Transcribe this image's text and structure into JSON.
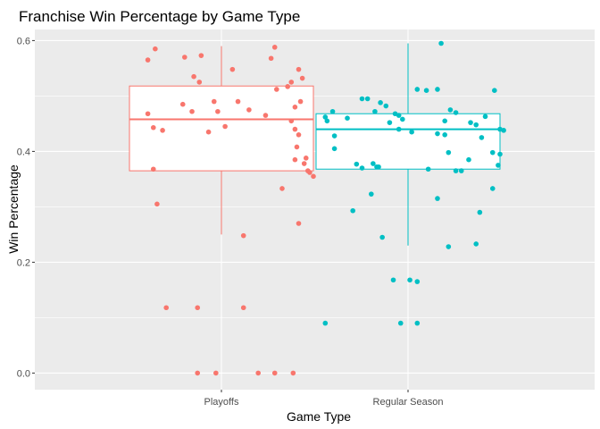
{
  "chart_data": {
    "type": "boxplot",
    "title": "Franchise Win Percentage by Game Type",
    "xlabel": "Game Type",
    "ylabel": "Win Percentage",
    "ylim": [
      -0.03,
      0.62
    ],
    "yticks": [
      "0.0",
      "0.2",
      "0.4",
      "0.6"
    ],
    "ytick_values": [
      0.0,
      0.2,
      0.4,
      0.6
    ],
    "grid": true,
    "legend": "none",
    "background": "#ebebeb",
    "categories": [
      "Playoffs",
      "Regular Season"
    ],
    "series": [
      {
        "category": "Playoffs",
        "color": "#f8766d",
        "box": {
          "whisker_low": 0.25,
          "q1": 0.365,
          "median": 0.458,
          "q3": 0.518,
          "whisker_high": 0.59
        },
        "points": [
          [
            -0.4,
            0.565
          ],
          [
            -0.36,
            0.585
          ],
          [
            -0.4,
            0.468
          ],
          [
            -0.37,
            0.443
          ],
          [
            -0.32,
            0.438
          ],
          [
            -0.37,
            0.368
          ],
          [
            -0.35,
            0.305
          ],
          [
            -0.3,
            0.118
          ],
          [
            -0.13,
            0.118
          ],
          [
            -0.2,
            0.57
          ],
          [
            -0.11,
            0.573
          ],
          [
            -0.15,
            0.535
          ],
          [
            -0.21,
            0.485
          ],
          [
            -0.16,
            0.472
          ],
          [
            -0.12,
            0.525
          ],
          [
            -0.04,
            0.49
          ],
          [
            -0.02,
            0.472
          ],
          [
            -0.07,
            0.435
          ],
          [
            0.02,
            0.445
          ],
          [
            0.06,
            0.548
          ],
          [
            0.09,
            0.49
          ],
          [
            0.15,
            0.475
          ],
          [
            0.24,
            0.465
          ],
          [
            0.29,
            0.588
          ],
          [
            0.27,
            0.568
          ],
          [
            0.3,
            0.512
          ],
          [
            0.36,
            0.517
          ],
          [
            0.38,
            0.525
          ],
          [
            0.42,
            0.548
          ],
          [
            0.4,
            0.48
          ],
          [
            0.38,
            0.455
          ],
          [
            0.42,
            0.43
          ],
          [
            0.4,
            0.44
          ],
          [
            0.41,
            0.408
          ],
          [
            0.4,
            0.385
          ],
          [
            0.44,
            0.532
          ],
          [
            0.43,
            0.49
          ],
          [
            0.46,
            0.388
          ],
          [
            0.45,
            0.378
          ],
          [
            0.47,
            0.365
          ],
          [
            0.48,
            0.362
          ],
          [
            0.5,
            0.355
          ],
          [
            0.33,
            0.333
          ],
          [
            0.42,
            0.27
          ],
          [
            0.12,
            0.248
          ],
          [
            0.12,
            0.118
          ],
          [
            -0.13,
            0.0
          ],
          [
            -0.03,
            0.0
          ],
          [
            0.2,
            0.0
          ],
          [
            0.29,
            0.0
          ],
          [
            0.39,
            0.0
          ]
        ]
      },
      {
        "category": "Regular Season",
        "color": "#00bfc4",
        "box": {
          "whisker_low": 0.23,
          "q1": 0.368,
          "median": 0.44,
          "q3": 0.468,
          "whisker_high": 0.595
        },
        "points": [
          [
            -0.45,
            0.462
          ],
          [
            -0.41,
            0.472
          ],
          [
            -0.44,
            0.455
          ],
          [
            -0.4,
            0.428
          ],
          [
            -0.4,
            0.405
          ],
          [
            -0.33,
            0.46
          ],
          [
            -0.25,
            0.495
          ],
          [
            -0.22,
            0.495
          ],
          [
            -0.18,
            0.472
          ],
          [
            -0.15,
            0.488
          ],
          [
            -0.12,
            0.482
          ],
          [
            -0.28,
            0.377
          ],
          [
            -0.25,
            0.37
          ],
          [
            -0.19,
            0.378
          ],
          [
            -0.16,
            0.372
          ],
          [
            -0.2,
            0.323
          ],
          [
            -0.3,
            0.293
          ],
          [
            -0.14,
            0.245
          ],
          [
            -0.07,
            0.468
          ],
          [
            -0.1,
            0.452
          ],
          [
            -0.05,
            0.465
          ],
          [
            -0.03,
            0.458
          ],
          [
            -0.05,
            0.44
          ],
          [
            0.02,
            0.435
          ],
          [
            0.05,
            0.512
          ],
          [
            0.1,
            0.51
          ],
          [
            0.16,
            0.512
          ],
          [
            0.16,
            0.432
          ],
          [
            0.2,
            0.455
          ],
          [
            0.23,
            0.475
          ],
          [
            0.26,
            0.47
          ],
          [
            0.2,
            0.43
          ],
          [
            0.22,
            0.398
          ],
          [
            0.26,
            0.365
          ],
          [
            0.34,
            0.452
          ],
          [
            0.37,
            0.448
          ],
          [
            0.4,
            0.425
          ],
          [
            0.42,
            0.463
          ],
          [
            0.47,
            0.51
          ],
          [
            0.5,
            0.44
          ],
          [
            0.52,
            0.438
          ],
          [
            0.46,
            0.398
          ],
          [
            0.5,
            0.395
          ],
          [
            0.49,
            0.375
          ],
          [
            0.46,
            0.333
          ],
          [
            0.11,
            0.368
          ],
          [
            0.29,
            0.365
          ],
          [
            0.33,
            0.385
          ],
          [
            0.39,
            0.29
          ],
          [
            0.37,
            0.233
          ],
          [
            0.22,
            0.228
          ],
          [
            0.16,
            0.315
          ],
          [
            0.18,
            0.595
          ],
          [
            -0.08,
            0.168
          ],
          [
            0.01,
            0.168
          ],
          [
            0.05,
            0.165
          ],
          [
            -0.04,
            0.09
          ],
          [
            0.05,
            0.09
          ],
          [
            -0.17,
            0.372
          ],
          [
            -0.45,
            0.09
          ]
        ]
      }
    ]
  }
}
